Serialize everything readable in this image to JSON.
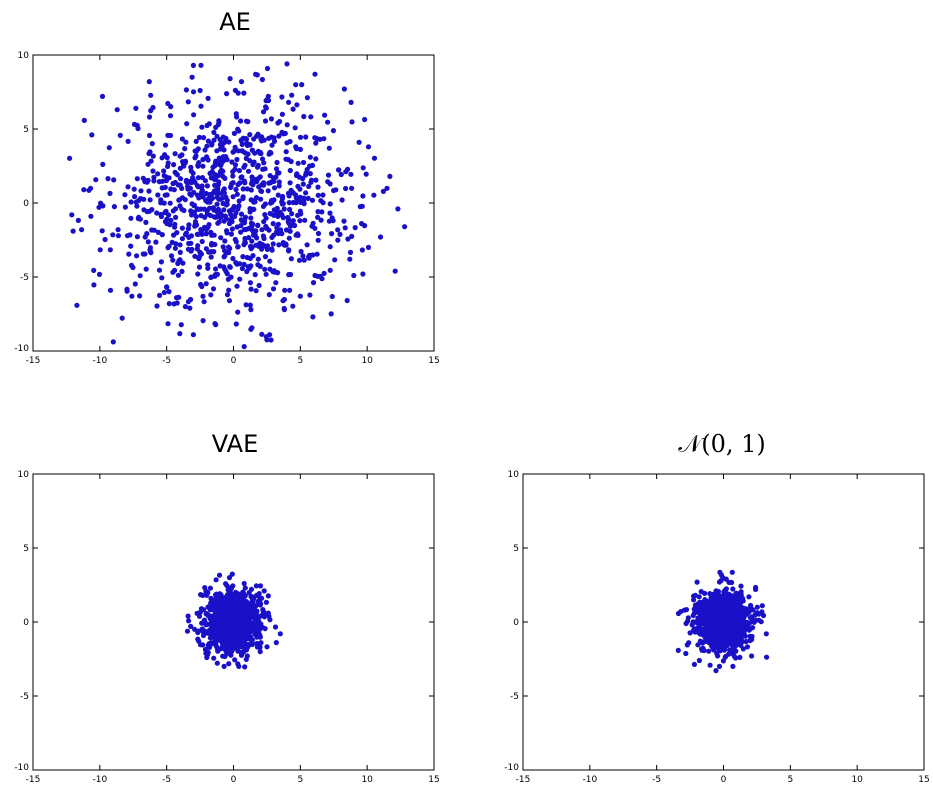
{
  "chart_data": [
    {
      "type": "scatter",
      "title": "AE",
      "xlim": [
        -15,
        15
      ],
      "ylim": [
        -10,
        10
      ],
      "xticks": [
        "-15",
        "-10",
        "-5",
        "0",
        "5",
        "10",
        "15"
      ],
      "yticks": [
        "-10",
        "-5",
        "0",
        "5",
        "10"
      ],
      "grid": false,
      "marker_color": "#1a10c8",
      "distribution": {
        "mean": [
          0,
          0
        ],
        "std": [
          4.5,
          3.4
        ],
        "n": 1000
      },
      "series": [
        {
          "points": [
            [
              -12.1,
              -0.8
            ],
            [
              -12.0,
              -1.9
            ],
            [
              -11.2,
              0.9
            ],
            [
              -10.6,
              4.6
            ],
            [
              -9.8,
              7.2
            ],
            [
              -9.2,
              -5.9
            ],
            [
              -7.3,
              6.4
            ],
            [
              -6.3,
              8.2
            ],
            [
              -7.6,
              -6.3
            ],
            [
              -5.0,
              -5.7
            ],
            [
              -3.6,
              -7.0
            ],
            [
              -3.0,
              -8.9
            ],
            [
              -3.0,
              9.3
            ],
            [
              -3.1,
              8.5
            ],
            [
              -2.5,
              7.6
            ],
            [
              -1.7,
              -6.2
            ],
            [
              0.6,
              8.2
            ],
            [
              0.8,
              -9.7
            ],
            [
              2.7,
              -8.9
            ],
            [
              2.6,
              7.2
            ],
            [
              4.0,
              9.4
            ],
            [
              6.1,
              8.7
            ],
            [
              5.1,
              8.0
            ],
            [
              8.3,
              7.7
            ],
            [
              8.8,
              6.8
            ],
            [
              9.4,
              4.1
            ],
            [
              10.1,
              3.8
            ],
            [
              11.7,
              1.8
            ],
            [
              12.3,
              -0.4
            ],
            [
              12.8,
              -1.6
            ],
            [
              11.0,
              -2.3
            ],
            [
              12.1,
              -4.6
            ],
            [
              10.1,
              -3.0
            ],
            [
              9.0,
              -4.9
            ],
            [
              8.7,
              -3.8
            ],
            [
              6.1,
              -4.9
            ],
            [
              5.0,
              -6.3
            ],
            [
              4.2,
              -5.9
            ],
            [
              3.7,
              -6.6
            ],
            [
              1.3,
              -7.2
            ],
            [
              -0.3,
              -6.6
            ],
            [
              -1.5,
              -5.8
            ],
            [
              -4.8,
              -6.8
            ]
          ]
        }
      ]
    },
    {
      "type": "scatter",
      "title": "VAE",
      "xlim": [
        -15,
        15
      ],
      "ylim": [
        -10,
        10
      ],
      "xticks": [
        "-15",
        "-10",
        "-5",
        "0",
        "5",
        "10",
        "15"
      ],
      "yticks": [
        "-10",
        "-5",
        "0",
        "5",
        "10"
      ],
      "grid": false,
      "marker_color": "#1a10c8",
      "distribution": {
        "mean": [
          0,
          0
        ],
        "std": [
          1.0,
          1.0
        ],
        "n": 1000
      },
      "series": [
        {
          "points": [
            [
              -3.4,
              0.4
            ],
            [
              -3.2,
              -0.3
            ],
            [
              -2.3,
              1.8
            ],
            [
              -2.6,
              -1.3
            ],
            [
              -0.3,
              3.0
            ],
            [
              0.8,
              2.6
            ],
            [
              2.1,
              1.6
            ],
            [
              2.6,
              0.6
            ],
            [
              3.5,
              -0.8
            ],
            [
              2.0,
              -2.0
            ],
            [
              0.4,
              -3.0
            ],
            [
              -0.7,
              -3.0
            ],
            [
              -2.0,
              -2.4
            ],
            [
              -2.4,
              0.9
            ],
            [
              2.3,
              2.1
            ]
          ]
        }
      ]
    },
    {
      "type": "scatter",
      "title": "𝒩(0, 1)",
      "xlim": [
        -15,
        15
      ],
      "ylim": [
        -10,
        10
      ],
      "xticks": [
        "-15",
        "-10",
        "-5",
        "0",
        "5",
        "10",
        "15"
      ],
      "yticks": [
        "-10",
        "-5",
        "0",
        "5",
        "10"
      ],
      "grid": false,
      "marker_color": "#1a10c8",
      "distribution": {
        "mean": [
          0,
          0
        ],
        "std": [
          1.0,
          1.0
        ],
        "n": 1000
      },
      "series": [
        {
          "points": [
            [
              -3.2,
              0.7
            ],
            [
              -2.6,
              -1.4
            ],
            [
              -2.1,
              1.8
            ],
            [
              -0.3,
              2.7
            ],
            [
              0.2,
              2.9
            ],
            [
              1.9,
              1.7
            ],
            [
              2.9,
              1.1
            ],
            [
              3.2,
              -0.8
            ],
            [
              2.1,
              -2.3
            ],
            [
              0.7,
              -3.0
            ],
            [
              -0.3,
              -3.0
            ],
            [
              -1.8,
              -2.6
            ],
            [
              -2.8,
              -0.1
            ],
            [
              2.4,
              2.2
            ]
          ]
        }
      ]
    }
  ]
}
